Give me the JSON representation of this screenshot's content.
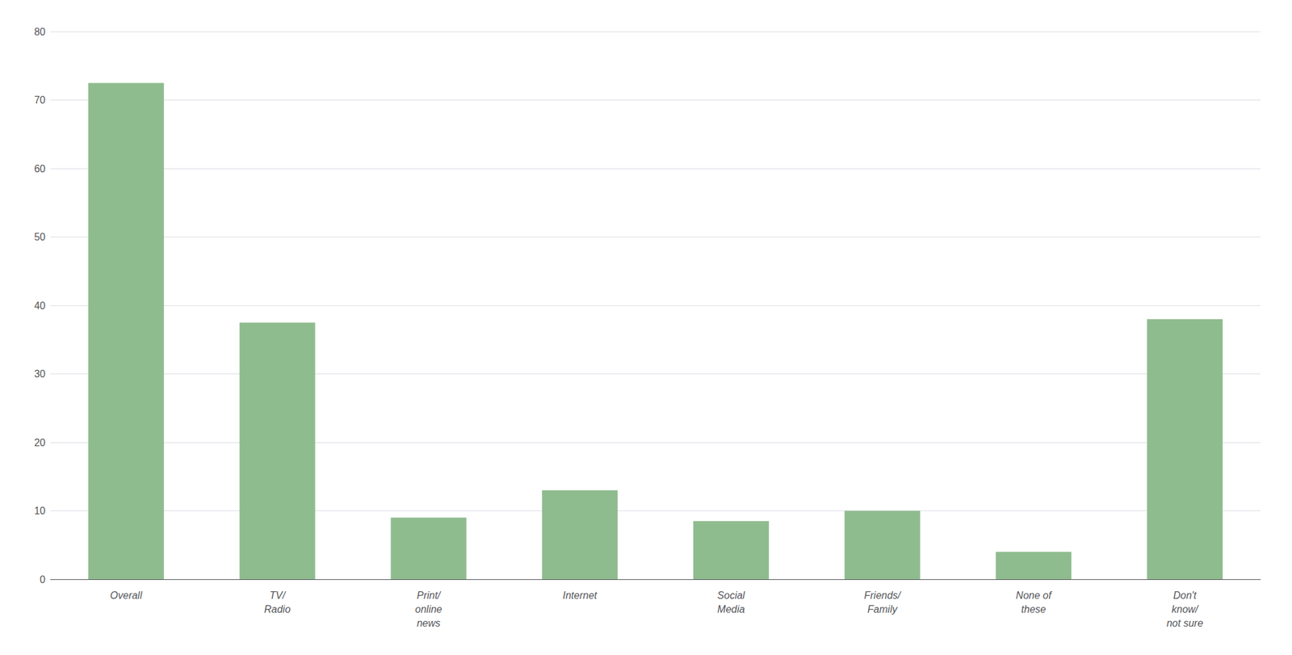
{
  "chart_data": {
    "type": "bar",
    "categories": [
      "Overall",
      "TV/\nRadio",
      "Print/\nonline\nnews",
      "Internet",
      "Social\nMedia",
      "Friends/\nFamily",
      "None of\nthese",
      "Don't\nknow/\nnot sure"
    ],
    "values": [
      72.5,
      37.5,
      9.0,
      13.0,
      8.5,
      10.0,
      4.0,
      38.0
    ],
    "color": "#8fbc8f",
    "ylim": [
      0,
      80
    ],
    "yticks": [
      0,
      10,
      20,
      30,
      40,
      50,
      60,
      70,
      80
    ],
    "grid": true
  }
}
